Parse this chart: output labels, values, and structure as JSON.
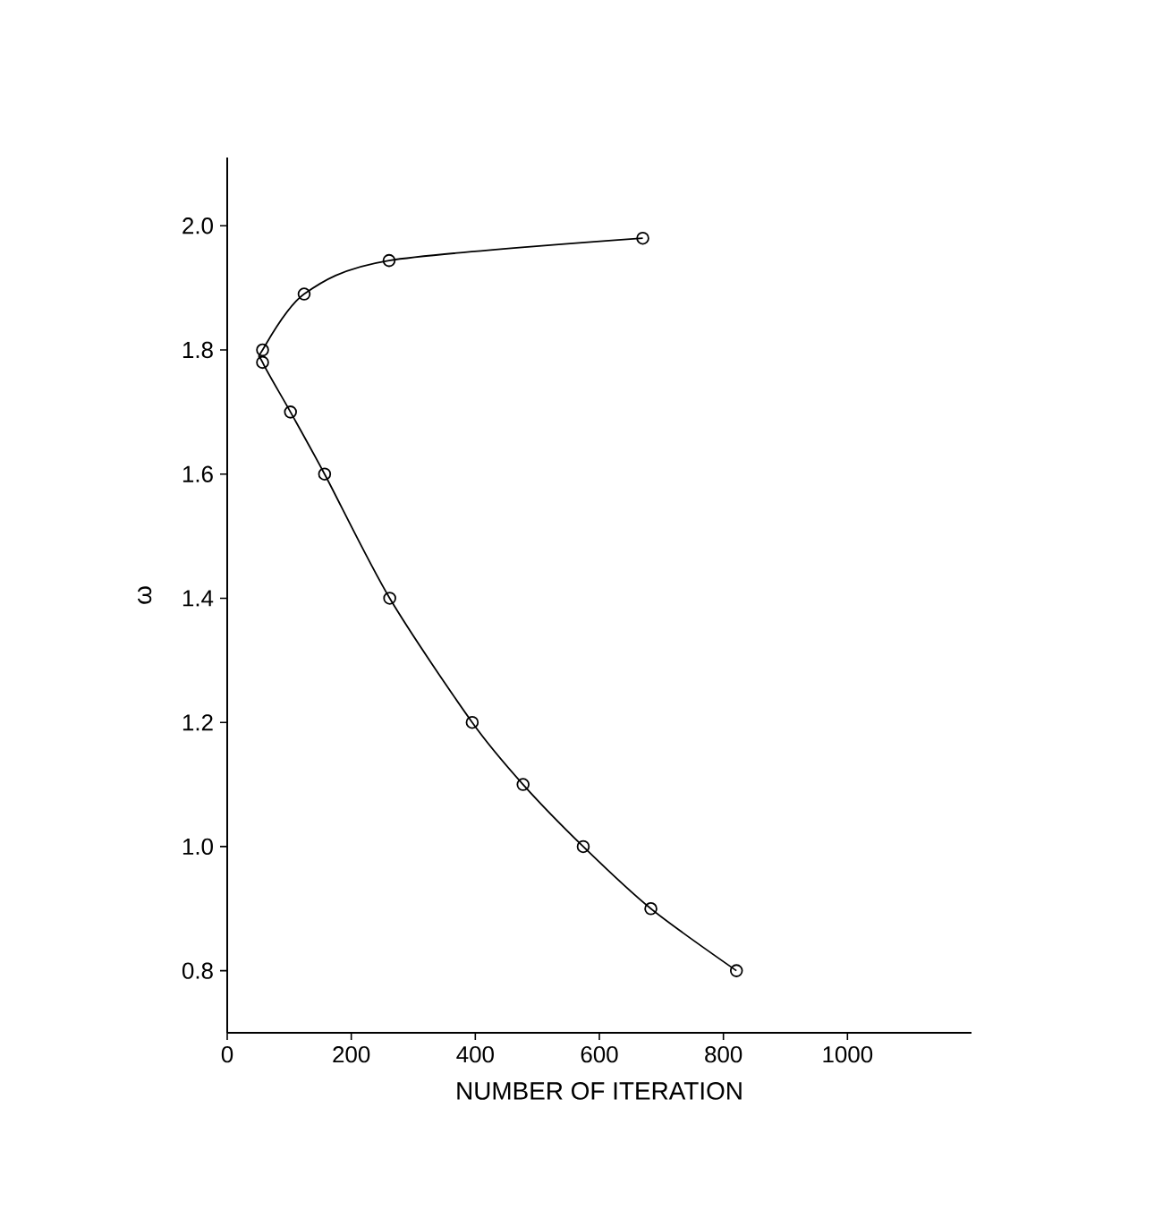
{
  "chart_data": {
    "type": "line",
    "xlabel": "NUMBER OF ITERATION",
    "ylabel": "ω",
    "xlim": [
      0,
      1200
    ],
    "ylim": [
      0.7,
      2.11
    ],
    "xticks": [
      0,
      200,
      400,
      600,
      800,
      1000
    ],
    "yticks": [
      {
        "value": 0.8,
        "label": "0.8"
      },
      {
        "value": 1.0,
        "label": "1.0"
      },
      {
        "value": 1.2,
        "label": "1.2"
      },
      {
        "value": 1.4,
        "label": "1.4"
      },
      {
        "value": 1.6,
        "label": "1.6"
      },
      {
        "value": 1.8,
        "label": "1.8"
      },
      {
        "value": 2.0,
        "label": "2.0"
      }
    ],
    "marker": "circle",
    "line_style": "solid",
    "series": [
      {
        "color": "#000000",
        "x": [
          670,
          261,
          124,
          57,
          57,
          102,
          157,
          262,
          395,
          477,
          574,
          683,
          821
        ],
        "values": [
          1.98,
          1.944,
          1.89,
          1.8,
          1.78,
          1.7,
          1.6,
          1.4,
          1.2,
          1.1,
          1.0,
          0.9,
          0.8
        ]
      }
    ]
  }
}
